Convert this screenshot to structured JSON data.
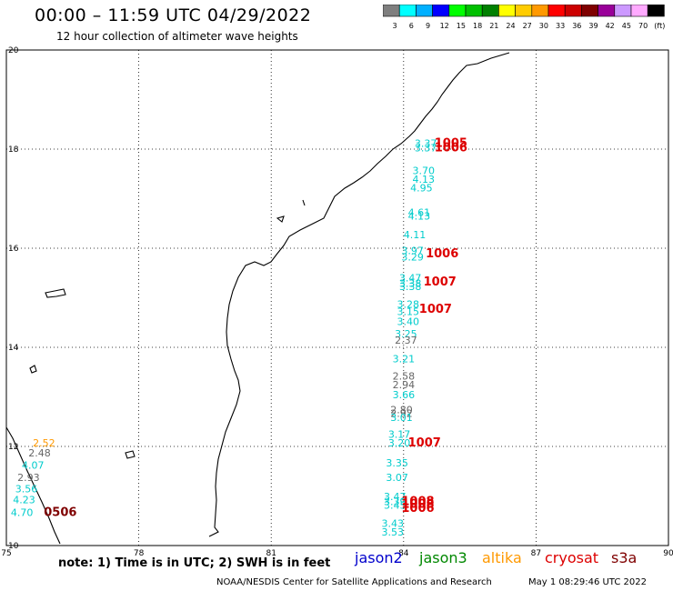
{
  "header": {
    "title": "00:00 – 11:59 UTC 04/29/2022",
    "subtitle": "12 hour collection of altimeter wave heights"
  },
  "colorbar": {
    "colors": [
      "#7f7f7f",
      "#00ffff",
      "#00b0ff",
      "#0000ff",
      "#00ff00",
      "#00c000",
      "#008000",
      "#ffff00",
      "#ffcc00",
      "#ff9900",
      "#ff0000",
      "#cc0000",
      "#7f0000",
      "#990099",
      "#cc99ff",
      "#ffaaff",
      "#000000"
    ],
    "tick_labels": [
      "3",
      "6",
      "9",
      "12",
      "15",
      "18",
      "21",
      "24",
      "27",
      "30",
      "33",
      "36",
      "39",
      "42",
      "45",
      "70",
      "(ft)"
    ]
  },
  "axes": {
    "lon_ticks": [
      "75",
      "78",
      "81",
      "84",
      "87",
      "90"
    ],
    "lat_ticks": [
      "20",
      "18",
      "16",
      "14",
      "12",
      "10"
    ]
  },
  "satellites": [
    {
      "name": "jason2",
      "color": "#0000cc"
    },
    {
      "name": "jason3",
      "color": "#008800"
    },
    {
      "name": "altika",
      "color": "#ff9900"
    },
    {
      "name": "cryosat",
      "color": "#dd0000"
    },
    {
      "name": "s3a",
      "color": "#7f0000"
    }
  ],
  "wave_labels": [
    {
      "text": "3.37",
      "lon": 84.25,
      "lat": 18.05,
      "color": "#00cccc"
    },
    {
      "text": "3.37",
      "lon": 84.25,
      "lat": 17.95,
      "color": "#00cccc"
    },
    {
      "text": "3.70",
      "lon": 84.2,
      "lat": 17.5,
      "color": "#00cccc"
    },
    {
      "text": "4.13",
      "lon": 84.2,
      "lat": 17.32,
      "color": "#00cccc"
    },
    {
      "text": "4.95",
      "lon": 84.15,
      "lat": 17.15,
      "color": "#00cccc"
    },
    {
      "text": "4.61",
      "lon": 84.1,
      "lat": 16.65,
      "color": "#00cccc"
    },
    {
      "text": "4.13",
      "lon": 84.1,
      "lat": 16.58,
      "color": "#00cccc"
    },
    {
      "text": "4.11",
      "lon": 84.0,
      "lat": 16.2,
      "color": "#00cccc"
    },
    {
      "text": "3.97",
      "lon": 83.95,
      "lat": 15.88,
      "color": "#00cccc"
    },
    {
      "text": "3.29",
      "lon": 83.95,
      "lat": 15.75,
      "color": "#00cccc"
    },
    {
      "text": "3.47",
      "lon": 83.9,
      "lat": 15.33,
      "color": "#00cccc"
    },
    {
      "text": "3.38",
      "lon": 83.9,
      "lat": 15.22,
      "color": "#00cccc"
    },
    {
      "text": "3.38",
      "lon": 83.9,
      "lat": 15.16,
      "color": "#00cccc"
    },
    {
      "text": "3.28",
      "lon": 83.85,
      "lat": 14.8,
      "color": "#00cccc"
    },
    {
      "text": "3.15",
      "lon": 83.85,
      "lat": 14.65,
      "color": "#00cccc"
    },
    {
      "text": "3.40",
      "lon": 83.85,
      "lat": 14.45,
      "color": "#00cccc"
    },
    {
      "text": "3.25",
      "lon": 83.8,
      "lat": 14.2,
      "color": "#00cccc"
    },
    {
      "text": "2.37",
      "lon": 83.8,
      "lat": 14.07,
      "color": "#666666"
    },
    {
      "text": "3.21",
      "lon": 83.75,
      "lat": 13.7,
      "color": "#00cccc"
    },
    {
      "text": "2.58",
      "lon": 83.75,
      "lat": 13.35,
      "color": "#666666"
    },
    {
      "text": "2.94",
      "lon": 83.75,
      "lat": 13.17,
      "color": "#666666"
    },
    {
      "text": "3.66",
      "lon": 83.75,
      "lat": 12.97,
      "color": "#00cccc"
    },
    {
      "text": "2.80",
      "lon": 83.7,
      "lat": 12.67,
      "color": "#666666"
    },
    {
      "text": "2.92",
      "lon": 83.7,
      "lat": 12.6,
      "color": "#666666"
    },
    {
      "text": "3.01",
      "lon": 83.7,
      "lat": 12.51,
      "color": "#00cccc"
    },
    {
      "text": "3.17",
      "lon": 83.65,
      "lat": 12.17,
      "color": "#00cccc"
    },
    {
      "text": "3.20",
      "lon": 83.65,
      "lat": 12.0,
      "color": "#00cccc"
    },
    {
      "text": "3.35",
      "lon": 83.6,
      "lat": 11.6,
      "color": "#00cccc"
    },
    {
      "text": "3.07",
      "lon": 83.6,
      "lat": 11.3,
      "color": "#00cccc"
    },
    {
      "text": "3.47",
      "lon": 83.55,
      "lat": 10.92,
      "color": "#00cccc"
    },
    {
      "text": "3.39",
      "lon": 83.55,
      "lat": 10.82,
      "color": "#00cccc"
    },
    {
      "text": "3.45",
      "lon": 83.55,
      "lat": 10.74,
      "color": "#00cccc"
    },
    {
      "text": "3.43",
      "lon": 83.5,
      "lat": 10.38,
      "color": "#00cccc"
    },
    {
      "text": "3.53",
      "lon": 83.5,
      "lat": 10.2,
      "color": "#00cccc"
    },
    {
      "text": "2.52",
      "lon": 75.6,
      "lat": 12.0,
      "color": "#ff9900"
    },
    {
      "text": "2.48",
      "lon": 75.5,
      "lat": 11.8,
      "color": "#666666"
    },
    {
      "text": "4.07",
      "lon": 75.35,
      "lat": 11.55,
      "color": "#00cccc"
    },
    {
      "text": "2.93",
      "lon": 75.25,
      "lat": 11.3,
      "color": "#666666"
    },
    {
      "text": "3.56",
      "lon": 75.2,
      "lat": 11.07,
      "color": "#00cccc"
    },
    {
      "text": "4.23",
      "lon": 75.15,
      "lat": 10.85,
      "color": "#00cccc"
    },
    {
      "text": "4.70",
      "lon": 75.1,
      "lat": 10.6,
      "color": "#00cccc"
    }
  ],
  "pressure_labels": [
    {
      "text": "1005",
      "lon": 84.7,
      "lat": 18.05,
      "color": "#dd0000"
    },
    {
      "text": "1006",
      "lon": 84.7,
      "lat": 17.95,
      "color": "#dd0000"
    },
    {
      "text": "1006",
      "lon": 84.5,
      "lat": 15.82,
      "color": "#dd0000"
    },
    {
      "text": "1007",
      "lon": 84.45,
      "lat": 15.25,
      "color": "#dd0000"
    },
    {
      "text": "1007",
      "lon": 84.35,
      "lat": 14.7,
      "color": "#dd0000"
    },
    {
      "text": "1007",
      "lon": 84.1,
      "lat": 12.0,
      "color": "#dd0000"
    },
    {
      "text": "1008",
      "lon": 83.95,
      "lat": 10.82,
      "color": "#dd0000"
    },
    {
      "text": "1008",
      "lon": 83.95,
      "lat": 10.76,
      "color": "#dd0000"
    },
    {
      "text": "1006",
      "lon": 83.95,
      "lat": 10.68,
      "color": "#dd0000"
    },
    {
      "text": "0506",
      "lon": 75.85,
      "lat": 10.6,
      "color": "#7f0000"
    }
  ],
  "map_style": {
    "grid": true,
    "grid_style": "dotted",
    "coastline_color": "#000000"
  },
  "footer": {
    "note": "note: 1) Time is in UTC; 2) SWH is in feet",
    "credit": "NOAA/NESDIS Center for Satellite Applications and Research",
    "timestamp": "May  1 08:29:46 UTC 2022"
  }
}
